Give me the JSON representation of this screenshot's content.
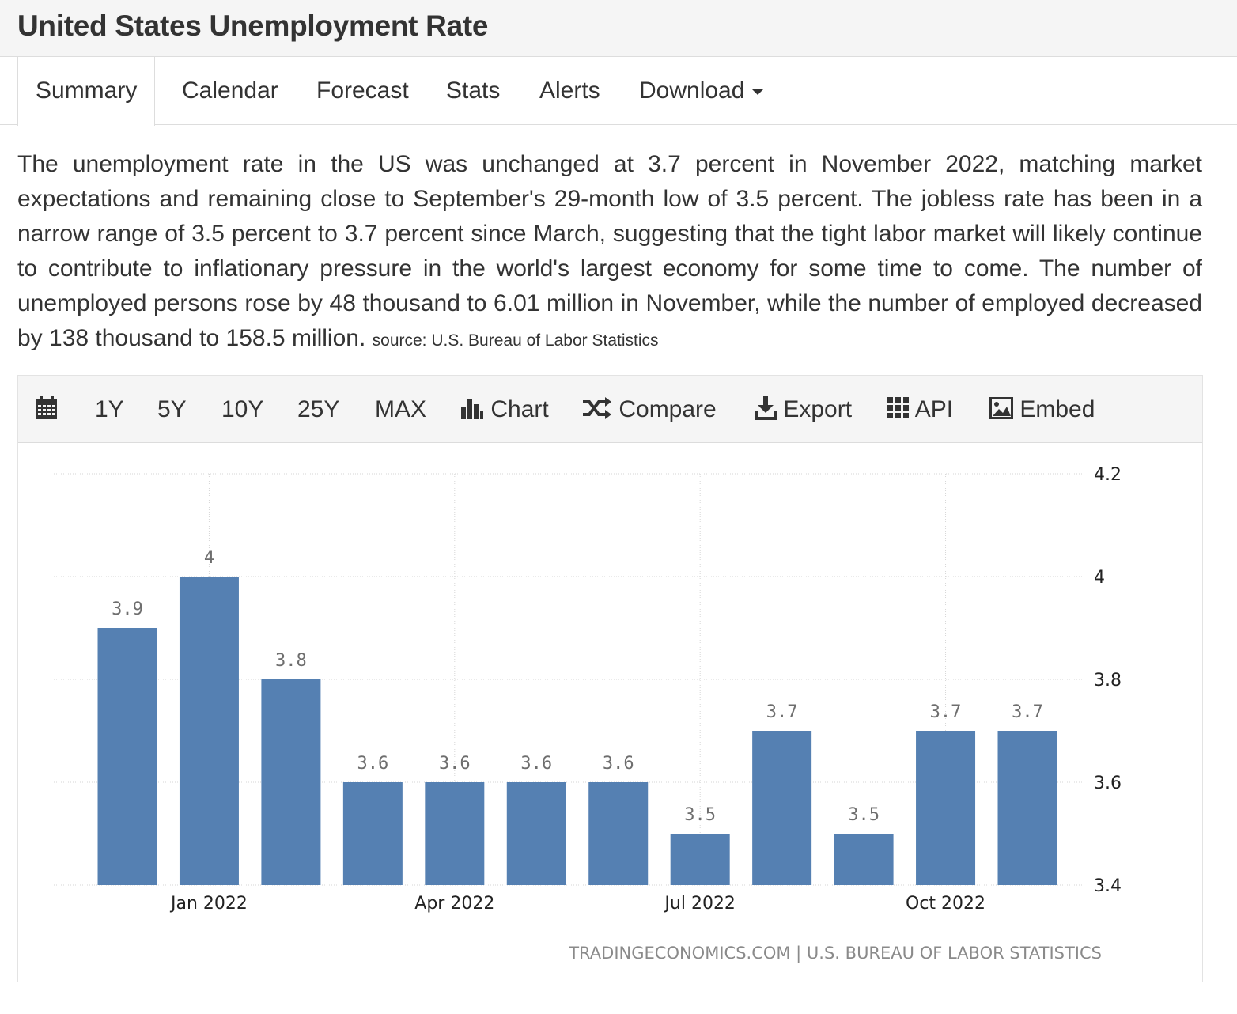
{
  "page": {
    "title": "United States Unemployment Rate"
  },
  "tabs": [
    {
      "label": "Summary",
      "active": true
    },
    {
      "label": "Calendar",
      "active": false
    },
    {
      "label": "Forecast",
      "active": false
    },
    {
      "label": "Stats",
      "active": false
    },
    {
      "label": "Alerts",
      "active": false
    },
    {
      "label": "Download",
      "active": false
    }
  ],
  "summary": {
    "text": "The unemployment rate in the US was unchanged at 3.7 percent in November 2022, matching market expectations and remaining close to September's 29-month low of 3.5 percent. The jobless rate has been in a narrow range of 3.5 percent to 3.7 percent since March, suggesting that the tight labor market will likely continue to contribute to inflationary pressure in the world's largest economy for some time to come. The number of unemployed persons rose by 48 thousand to 6.01 million in November, while the number of employed decreased by 138 thousand to 158.5 million.",
    "source": "source: U.S. Bureau of Labor Statistics"
  },
  "toolbar": {
    "calendar_icon": "calendar-icon",
    "range_1y": "1Y",
    "range_5y": "5Y",
    "range_10y": "10Y",
    "range_25y": "25Y",
    "range_max": "MAX",
    "chart_label": "Chart",
    "compare_label": "Compare",
    "export_label": "Export",
    "api_label": "API",
    "embed_label": "Embed"
  },
  "chart_data": {
    "type": "bar",
    "title": "",
    "xlabel": "",
    "ylabel": "",
    "categories": [
      "Dec 2021",
      "Jan 2022",
      "Feb 2022",
      "Mar 2022",
      "Apr 2022",
      "May 2022",
      "Jun 2022",
      "Jul 2022",
      "Aug 2022",
      "Sep 2022",
      "Oct 2022",
      "Nov 2022"
    ],
    "values": [
      3.9,
      4.0,
      3.8,
      3.6,
      3.6,
      3.6,
      3.6,
      3.5,
      3.7,
      3.5,
      3.7,
      3.7
    ],
    "value_labels": [
      "3.9",
      "4",
      "3.8",
      "3.6",
      "3.6",
      "3.6",
      "3.6",
      "3.5",
      "3.7",
      "3.5",
      "3.7",
      "3.7"
    ],
    "ylim": [
      3.4,
      4.2
    ],
    "y_ticks": [
      "3.4",
      "3.6",
      "3.8",
      "4",
      "4.2"
    ],
    "x_tick_labels": [
      {
        "label": "Jan 2022",
        "category": "Jan 2022"
      },
      {
        "label": "Apr 2022",
        "category": "Apr 2022"
      },
      {
        "label": "Jul 2022",
        "category": "Jul 2022"
      },
      {
        "label": "Oct 2022",
        "category": "Oct 2022"
      }
    ],
    "y_axis_side": "right",
    "grid": true,
    "bar_color": "#5580b2",
    "credit": "TRADINGECONOMICS.COM | U.S. BUREAU OF LABOR STATISTICS"
  }
}
